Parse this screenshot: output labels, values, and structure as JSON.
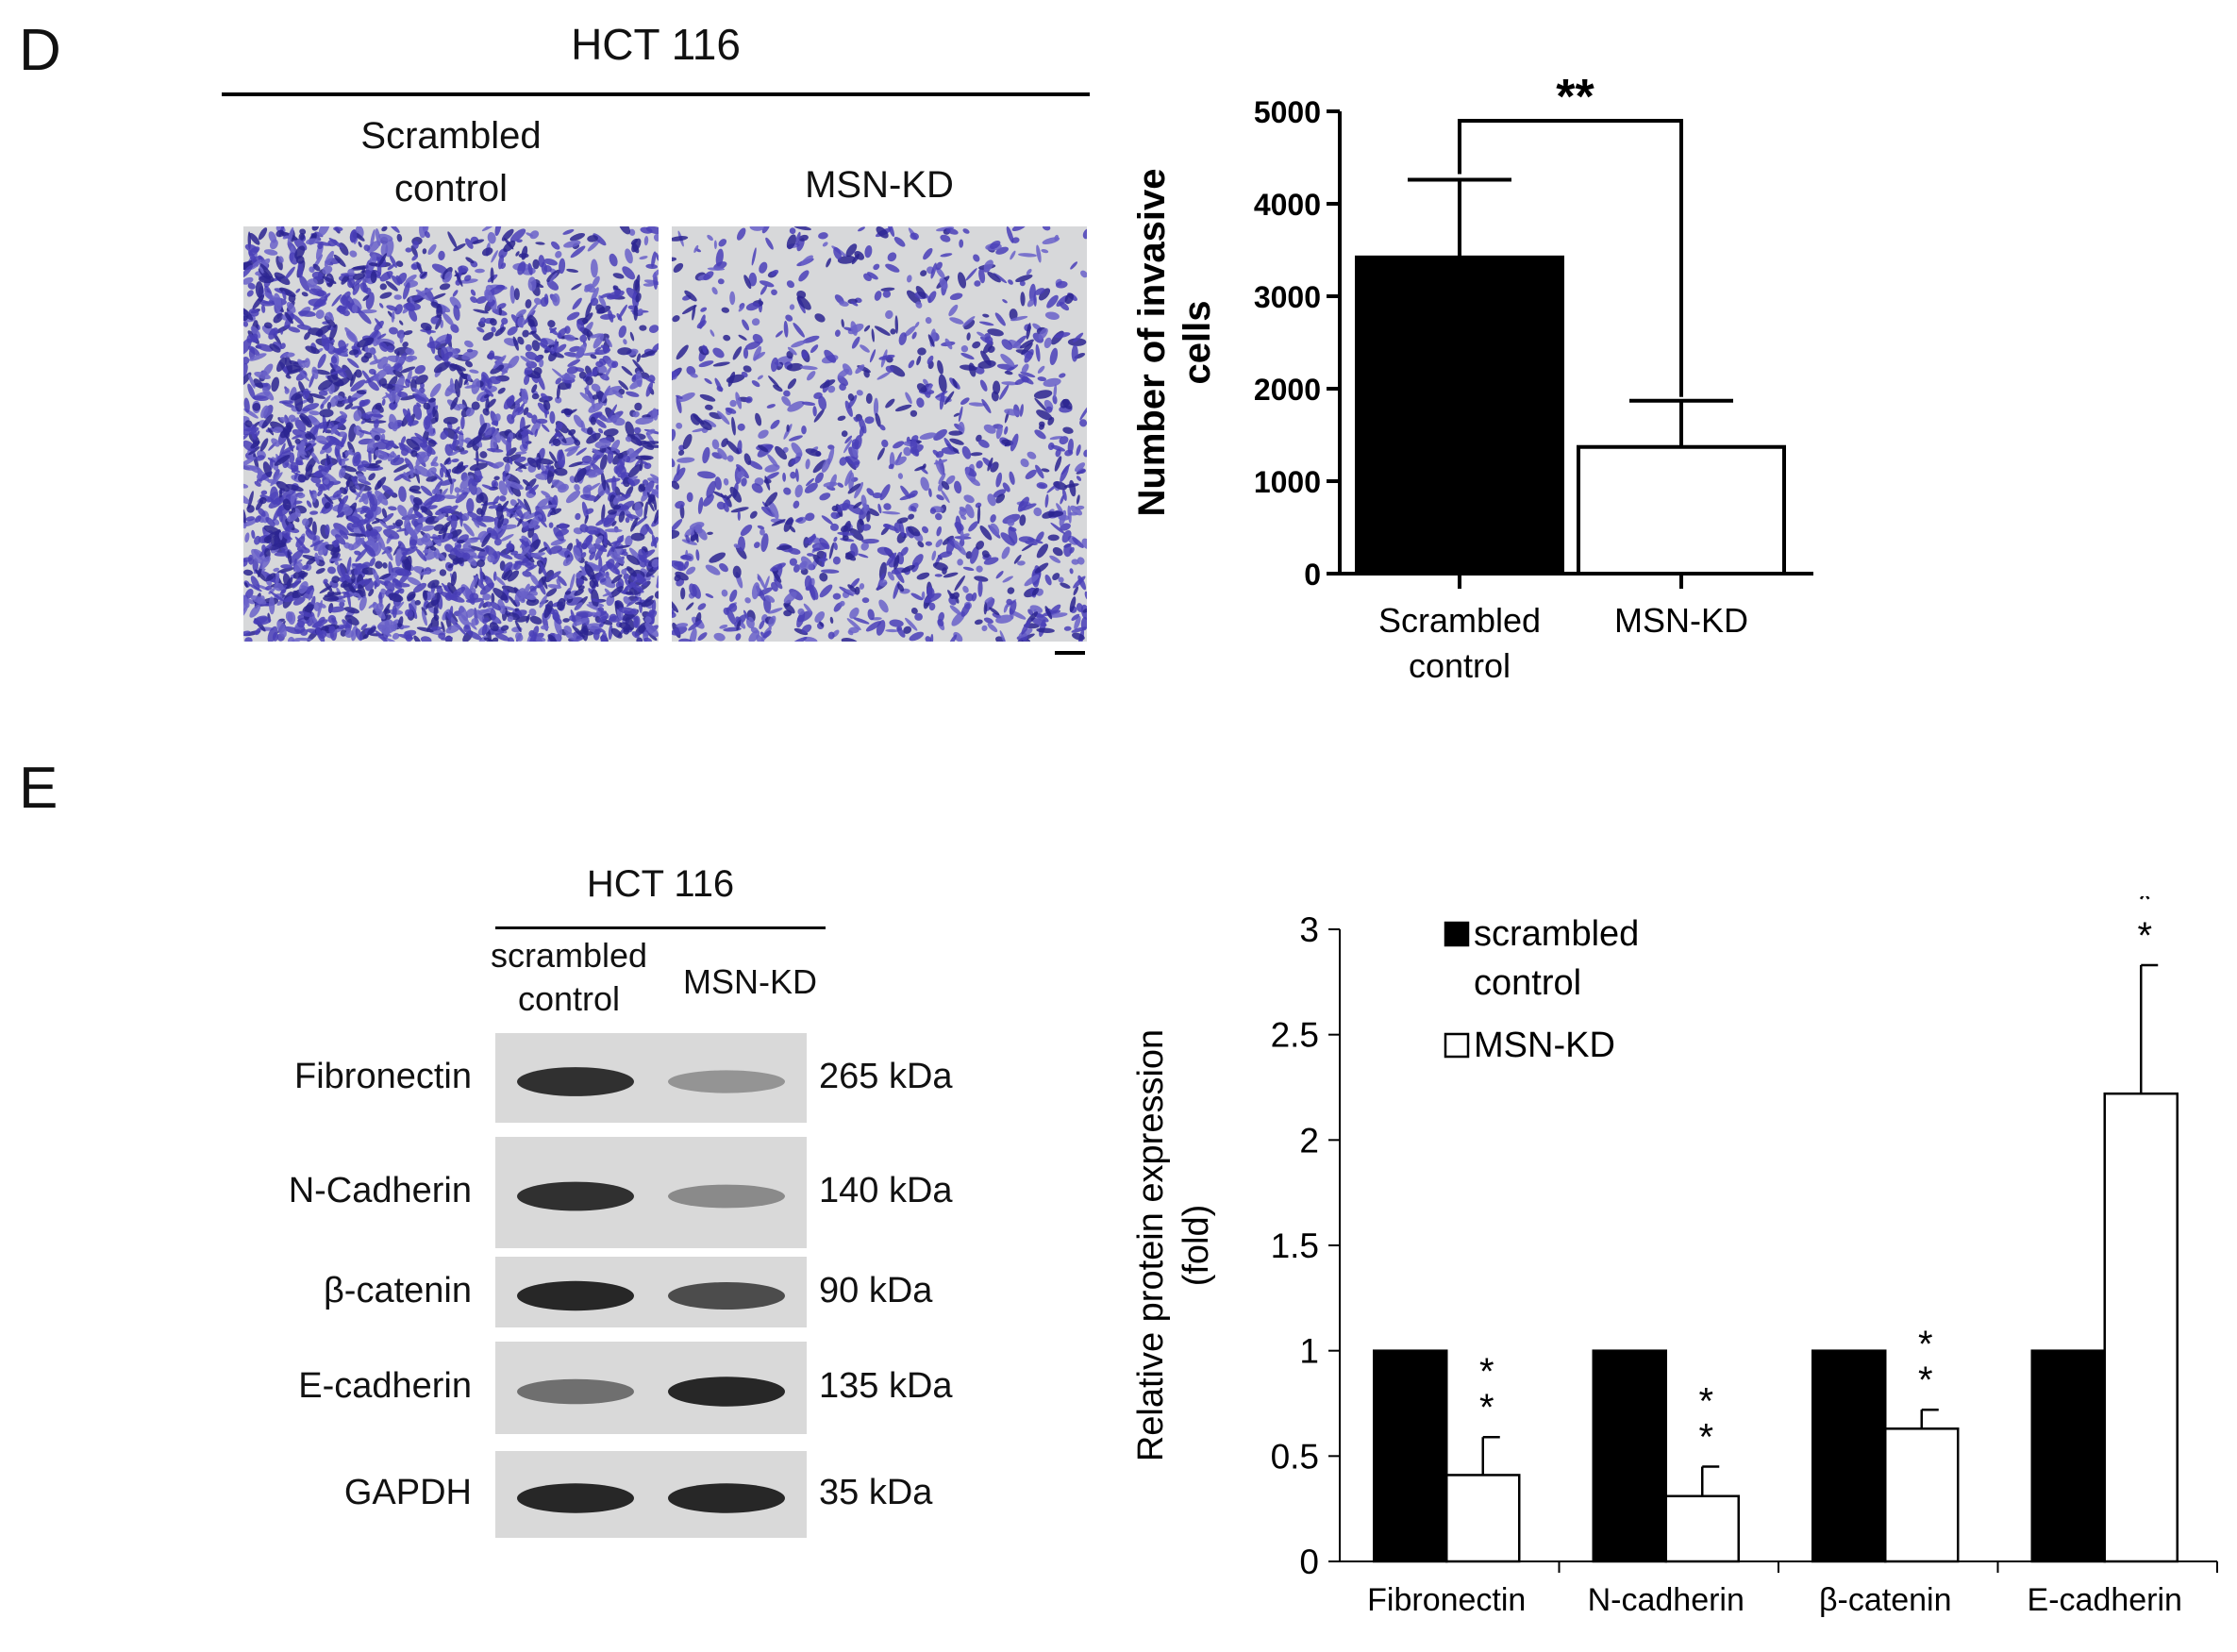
{
  "panel_d": {
    "letter": "D",
    "cell_line": "HCT 116",
    "image_labels": {
      "left_line1": "Scrambled",
      "left_line2": "control",
      "right": "MSN-KD"
    }
  },
  "panel_e": {
    "letter": "E",
    "cell_line": "HCT 116",
    "lane_labels": {
      "left_line1": "scrambled",
      "left_line2": "control",
      "right": "MSN-KD"
    },
    "blot_rows": [
      {
        "protein": "Fibronectin",
        "size": "265 kDa",
        "left_intensity": 0.9,
        "right_intensity": 0.35
      },
      {
        "protein": "N-Cadherin",
        "size": "140 kDa",
        "left_intensity": 0.9,
        "right_intensity": 0.4
      },
      {
        "protein": "β-catenin",
        "size": "90 kDa",
        "left_intensity": 0.95,
        "right_intensity": 0.75
      },
      {
        "protein": "E-cadherin",
        "size": "135 kDa",
        "left_intensity": 0.55,
        "right_intensity": 0.95
      },
      {
        "protein": "GAPDH",
        "size": "35 kDa",
        "left_intensity": 0.95,
        "right_intensity": 0.95
      }
    ]
  },
  "chart_data": [
    {
      "type": "bar",
      "categories_line1": [
        "Scrambled",
        "MSN-KD"
      ],
      "categories_line2": [
        "control",
        ""
      ],
      "values": [
        3420,
        1370
      ],
      "errors": [
        840,
        500
      ],
      "colors": [
        "#000000",
        "#ffffff"
      ],
      "ylabel_line1": "Number of invasive",
      "ylabel_line2": "cells",
      "ylim": [
        0,
        5000
      ],
      "yticks": [
        0,
        1000,
        2000,
        3000,
        4000,
        5000
      ],
      "significance": "**"
    },
    {
      "type": "bar",
      "categories": [
        "Fibronectin",
        "N-cadherin",
        "β-catenin",
        "E-cadherin"
      ],
      "series": [
        {
          "name_line1": "scrambled",
          "name_line2": "control",
          "color": "#000000",
          "values": [
            1,
            1,
            1,
            1
          ],
          "errors": [
            0,
            0,
            0,
            0
          ]
        },
        {
          "name_line1": "MSN-KD",
          "name_line2": "",
          "color": "#ffffff",
          "values": [
            0.41,
            0.31,
            0.63,
            2.22
          ],
          "errors": [
            0.18,
            0.14,
            0.09,
            0.61
          ]
        }
      ],
      "significance": [
        "**",
        "**",
        "**",
        "**"
      ],
      "ylabel_line1": "Relative protein expression",
      "ylabel_line2": "(fold)",
      "ylim": [
        0,
        3
      ],
      "yticks": [
        "0",
        "0.5",
        "1",
        "1.5",
        "2",
        "2.5",
        "3"
      ],
      "legend_position": "top-left"
    }
  ]
}
